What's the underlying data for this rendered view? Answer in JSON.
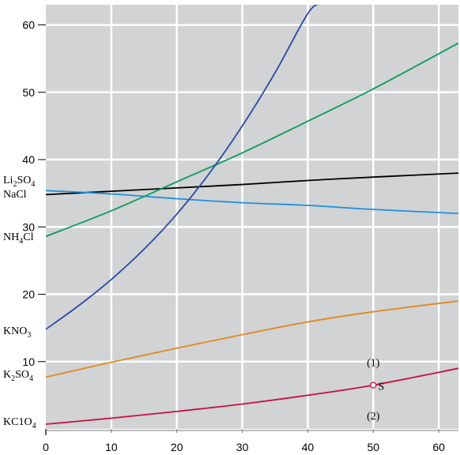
{
  "chart_data": {
    "type": "line",
    "xlim": [
      0,
      63
    ],
    "ylim": [
      0,
      63
    ],
    "grid": true,
    "background_color": "#d1d3d4",
    "grid_color": "#ffffff",
    "x_ticks": [
      "0",
      "10",
      "20",
      "30",
      "40",
      "50",
      "60"
    ],
    "x_tick_values": [
      0,
      10,
      20,
      30,
      40,
      50,
      60
    ],
    "y_ticks": [
      "10",
      "20",
      "30",
      "40",
      "50",
      "60"
    ],
    "y_tick_values": [
      10,
      20,
      30,
      40,
      50,
      60
    ],
    "series": [
      {
        "name": "Li₂SO₄",
        "label_text": "Li",
        "label_sub": "2",
        "label_rest": "SO",
        "label_sub2": "4",
        "color": "#000000",
        "x": [
          0,
          10,
          20,
          30,
          40,
          50,
          63
        ],
        "y": [
          34.8,
          35.3,
          35.8,
          36.3,
          36.9,
          37.4,
          38.0
        ]
      },
      {
        "name": "NaCl",
        "label_text": "NaCl",
        "label_sub": "",
        "label_rest": "",
        "label_sub2": "",
        "color": "#1e90dc",
        "x": [
          0,
          10,
          20,
          30,
          40,
          50,
          63
        ],
        "y": [
          35.4,
          34.9,
          34.2,
          33.6,
          33.2,
          32.6,
          32.0
        ]
      },
      {
        "name": "NH₄Cl",
        "label_text": "NH",
        "label_sub": "4",
        "label_rest": "Cl",
        "label_sub2": "",
        "color": "#0e9a5a",
        "x": [
          0,
          10,
          20,
          30,
          40,
          50,
          63
        ],
        "y": [
          28.6,
          32.4,
          36.7,
          41.0,
          45.7,
          50.5,
          57.3
        ]
      },
      {
        "name": "KNO₃",
        "label_text": "KNO",
        "label_sub": "3",
        "label_rest": "",
        "label_sub2": "",
        "color": "#2a4aa8",
        "x": [
          0,
          5,
          10,
          15,
          20,
          25,
          30,
          35,
          40,
          42
        ],
        "y": [
          14.8,
          18.3,
          22.2,
          26.7,
          31.9,
          38.0,
          45.0,
          52.9,
          61.7,
          63.2
        ]
      },
      {
        "name": "K₂SO₄",
        "label_text": "K",
        "label_sub": "2",
        "label_rest": "SO",
        "label_sub2": "4",
        "color": "#e08a1c",
        "x": [
          0,
          10,
          20,
          30,
          40,
          50,
          63
        ],
        "y": [
          7.7,
          9.9,
          12.0,
          14.0,
          15.9,
          17.4,
          19.0
        ]
      },
      {
        "name": "KClO₄",
        "label_text": "KC1O",
        "label_sub": "4",
        "label_rest": "",
        "label_sub2": "",
        "color": "#c8103c",
        "x": [
          0,
          10,
          20,
          30,
          40,
          50,
          63
        ],
        "y": [
          0.7,
          1.6,
          2.6,
          3.7,
          5.0,
          6.5,
          9.0
        ]
      }
    ],
    "annotations": [
      {
        "text": "(1)",
        "x": 50,
        "y": 9.3
      },
      {
        "text": "S",
        "x": 51.2,
        "y": 5.8
      },
      {
        "text": "(2)",
        "x": 50,
        "y": 1.4
      }
    ],
    "point_S": {
      "x": 50,
      "y": 6.5,
      "color": "#c8103c"
    }
  }
}
